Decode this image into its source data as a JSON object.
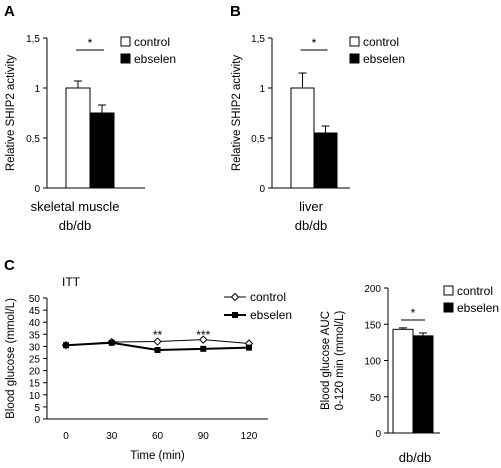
{
  "chart_data": [
    {
      "panel": "A",
      "type": "bar",
      "categories": [
        "control",
        "ebselen"
      ],
      "values": [
        1.0,
        0.75
      ],
      "errors": [
        0.07,
        0.08
      ],
      "ylabel": "Relative SHIP2 activity",
      "ylim": [
        0,
        1.5
      ],
      "yticks": [
        "0",
        "0,5",
        "1",
        "1,5"
      ],
      "xlabel": "skeletal muscle",
      "sublabel": "db/db",
      "legend": [
        "control",
        "ebselen"
      ],
      "legend_position": "top-right",
      "significance": "*",
      "colors": {
        "control": "#ffffff",
        "ebselen": "#000000"
      }
    },
    {
      "panel": "B",
      "type": "bar",
      "categories": [
        "control",
        "ebselen"
      ],
      "values": [
        1.0,
        0.55
      ],
      "errors": [
        0.15,
        0.07
      ],
      "ylabel": "Relative SHIP2 activity",
      "ylim": [
        0,
        1.5
      ],
      "yticks": [
        "0",
        "0,5",
        "1",
        "1,5"
      ],
      "xlabel": "liver",
      "sublabel": "db/db",
      "legend": [
        "control",
        "ebselen"
      ],
      "legend_position": "top-right",
      "significance": "*",
      "colors": {
        "control": "#ffffff",
        "ebselen": "#000000"
      }
    },
    {
      "panel": "C",
      "type": "line",
      "title": "ITT",
      "x": [
        0,
        30,
        60,
        90,
        120
      ],
      "series": [
        {
          "name": "control",
          "values": [
            30.5,
            31.8,
            32.0,
            32.8,
            31.2
          ],
          "marker": "open-diamond"
        },
        {
          "name": "ebselen",
          "values": [
            30.5,
            31.5,
            28.5,
            29.0,
            29.5
          ],
          "marker": "filled-square"
        }
      ],
      "xlabel": "Time (min)",
      "ylabel": "Blood glucose (mmol/L)",
      "ylim": [
        0,
        50
      ],
      "yticks": [
        "0",
        "5",
        "10",
        "15",
        "20",
        "25",
        "30",
        "35",
        "40",
        "45",
        "50"
      ],
      "xticks": [
        "0",
        "30",
        "60",
        "90",
        "120"
      ],
      "annotations": [
        {
          "x": 60,
          "label": "**"
        },
        {
          "x": 90,
          "label": "***"
        }
      ],
      "legend_position": "top-right"
    },
    {
      "panel": "C2",
      "type": "bar",
      "categories": [
        "control",
        "ebselen"
      ],
      "values": [
        143,
        134
      ],
      "errors": [
        2,
        4
      ],
      "ylabel": "Blood glucose AUC\n0-120 min (mmol/L)",
      "ylim": [
        0,
        200
      ],
      "yticks": [
        "0",
        "50",
        "100",
        "150",
        "200"
      ],
      "sublabel": "db/db",
      "legend": [
        "control",
        "ebselen"
      ],
      "legend_position": "top-right",
      "significance": "*",
      "colors": {
        "control": "#ffffff",
        "ebselen": "#000000"
      }
    }
  ]
}
